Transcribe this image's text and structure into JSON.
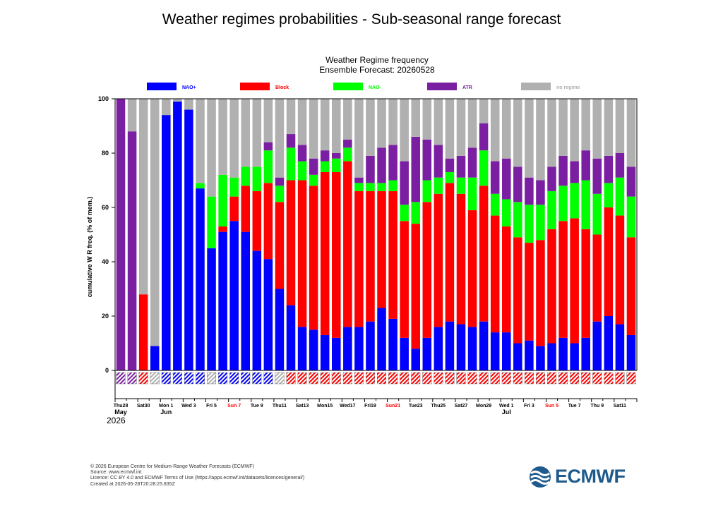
{
  "page": {
    "title": "Weather regimes probabilities - Sub-seasonal range forecast"
  },
  "chart_data": {
    "type": "bar",
    "stacked": true,
    "title": "Weather Regime frequency",
    "subtitle": "Ensemble Forecast: 20260528",
    "ylabel": "cumulative W R freq. (% of mem.)",
    "xlabel": "",
    "ylim": [
      0,
      100
    ],
    "yticks": [
      0,
      20,
      40,
      60,
      80,
      100
    ],
    "legend_position": "top",
    "days": 46,
    "series": [
      {
        "name": "NAO+",
        "color": "#0000ff",
        "values": [
          0,
          0,
          0,
          9,
          94,
          99,
          96,
          67,
          45,
          51,
          55,
          51,
          44,
          41,
          30,
          24,
          16,
          15,
          13,
          12,
          16,
          16,
          18,
          23,
          19,
          12,
          8,
          12,
          16,
          18,
          17,
          16,
          18,
          14,
          14,
          10,
          11,
          9,
          10,
          12,
          10,
          12,
          18,
          20,
          17,
          13
        ]
      },
      {
        "name": "Block",
        "color": "#ff0000",
        "values": [
          0,
          0,
          28,
          0,
          0,
          0,
          0,
          0,
          0,
          2,
          9,
          17,
          22,
          28,
          32,
          46,
          54,
          53,
          60,
          61,
          61,
          50,
          48,
          43,
          47,
          43,
          46,
          50,
          49,
          51,
          48,
          43,
          50,
          43,
          39,
          39,
          36,
          39,
          42,
          43,
          46,
          40,
          32,
          40,
          40,
          36
        ]
      },
      {
        "name": "NAO-",
        "color": "#00ff00",
        "values": [
          0,
          0,
          0,
          0,
          0,
          0,
          0,
          2,
          19,
          19,
          7,
          7,
          9,
          12,
          6,
          12,
          7,
          4,
          4,
          5,
          5,
          3,
          3,
          3,
          4,
          6,
          8,
          8,
          6,
          4,
          6,
          12,
          13,
          8,
          10,
          13,
          14,
          13,
          14,
          13,
          13,
          18,
          15,
          9,
          14,
          15
        ]
      },
      {
        "name": "ATR",
        "color": "#7b1fa2",
        "values": [
          100,
          88,
          0,
          0,
          0,
          0,
          0,
          0,
          0,
          0,
          0,
          0,
          0,
          3,
          3,
          5,
          6,
          6,
          4,
          2,
          3,
          2,
          10,
          13,
          13,
          16,
          24,
          15,
          12,
          5,
          8,
          11,
          10,
          12,
          15,
          13,
          10,
          9,
          9,
          11,
          8,
          11,
          13,
          10,
          9,
          11
        ]
      }
    ],
    "no_regime": {
      "name": "no regime",
      "color": "#b0b0b0"
    },
    "x_tick_labels": [
      {
        "day": 0,
        "label": "Thu28",
        "sunday": false
      },
      {
        "day": 2,
        "label": "Sat30",
        "sunday": false
      },
      {
        "day": 4,
        "label": "Mon 1",
        "sunday": false
      },
      {
        "day": 6,
        "label": "Wed 3",
        "sunday": false
      },
      {
        "day": 8,
        "label": "Fri 5",
        "sunday": false
      },
      {
        "day": 10,
        "label": "Sun 7",
        "sunday": true
      },
      {
        "day": 12,
        "label": "Tue 9",
        "sunday": false
      },
      {
        "day": 14,
        "label": "Thu11",
        "sunday": false
      },
      {
        "day": 16,
        "label": "Sat13",
        "sunday": false
      },
      {
        "day": 18,
        "label": "Mon15",
        "sunday": false
      },
      {
        "day": 20,
        "label": "Wed17",
        "sunday": false
      },
      {
        "day": 22,
        "label": "Fri19",
        "sunday": false
      },
      {
        "day": 24,
        "label": "Sun21",
        "sunday": true
      },
      {
        "day": 26,
        "label": "Tue23",
        "sunday": false
      },
      {
        "day": 28,
        "label": "Thu25",
        "sunday": false
      },
      {
        "day": 30,
        "label": "Sat27",
        "sunday": false
      },
      {
        "day": 32,
        "label": "Mon29",
        "sunday": false
      },
      {
        "day": 34,
        "label": "Wed 1",
        "sunday": false
      },
      {
        "day": 36,
        "label": "Fri 3",
        "sunday": false
      },
      {
        "day": 38,
        "label": "Sun 5",
        "sunday": true
      },
      {
        "day": 40,
        "label": "Tue 7",
        "sunday": false
      },
      {
        "day": 42,
        "label": "Thu 9",
        "sunday": false
      },
      {
        "day": 44,
        "label": "Sat11",
        "sunday": false
      }
    ],
    "month_labels": [
      {
        "day": 0,
        "label": "May"
      },
      {
        "day": 4,
        "label": "Jun"
      },
      {
        "day": 34,
        "label": "Jul"
      }
    ],
    "year_label": "2026",
    "dominant_regime": [
      "ATR",
      "ATR",
      "Block",
      "none",
      "NAO+",
      "NAO+",
      "NAO+",
      "NAO+",
      "none",
      "NAO+",
      "NAO+",
      "NAO+",
      "NAO+",
      "NAO+",
      "none",
      "Block",
      "Block",
      "Block",
      "Block",
      "Block",
      "Block",
      "Block",
      "Block",
      "Block",
      "Block",
      "Block",
      "Block",
      "Block",
      "Block",
      "Block",
      "Block",
      "Block",
      "Block",
      "Block",
      "Block",
      "Block",
      "Block",
      "Block",
      "Block",
      "Block",
      "Block",
      "Block",
      "Block",
      "Block",
      "Block",
      "Block"
    ]
  },
  "footer": {
    "lines": [
      "© 2026 European Centre for Medium-Range Weather Forecasts (ECMWF)",
      "Source: www.ecmwf.int",
      "Licence: CC BY 4.0 and ECMWF Terms of Use (https://apps.ecmwf.int/datasets/licences/general/)",
      "Created at 2026-05-28T20:28:25.835Z"
    ]
  },
  "logo": {
    "text": "ECMWF",
    "icon": "ecmwf-logo-icon",
    "color": "#1f5a8c"
  }
}
